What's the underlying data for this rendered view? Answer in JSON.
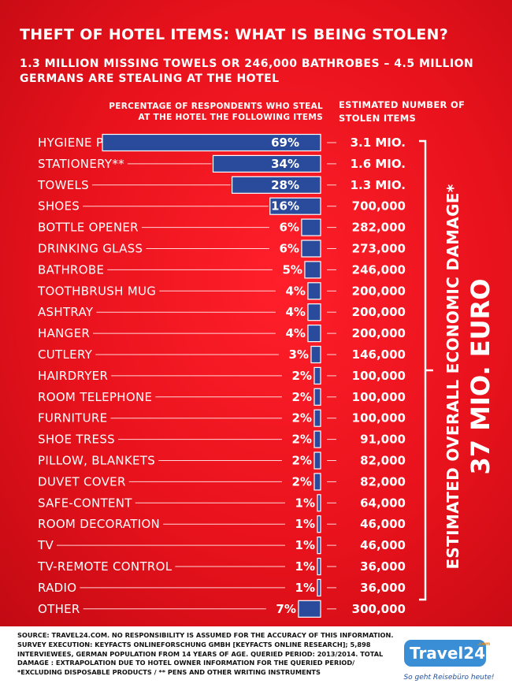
{
  "title": "THEFT OF HOTEL ITEMS: WHAT IS BEING STOLEN?",
  "subtitle": "1.3 MILLION MISSING TOWELS OR 246,000 BATHROBES – 4.5 MILLION GERMANS ARE STEALING AT THE HOTEL",
  "headers": {
    "percent": "PERCENTAGE OF RESPONDENTS WHO STEAL AT THE HOTEL THE FOLLOWING ITEMS",
    "stolen": "ESTIMATED NUMBER OF STOLEN ITEMS"
  },
  "damage": {
    "label": "ESTIMATED OVERALL ECONOMIC DAMAGE*",
    "value": "37 MIO. EURO"
  },
  "chart_data": {
    "type": "bar",
    "orientation": "horizontal",
    "categories": [
      "HYGIENE PRODUCTS",
      "STATIONERY**",
      "TOWELS",
      "SHOES",
      "BOTTLE OPENER",
      "DRINKING GLASS",
      "BATHROBE",
      "TOOTHBRUSH MUG",
      "ASHTRAY",
      "HANGER",
      "CUTLERY",
      "HAIRDRYER",
      "ROOM TELEPHONE",
      "FURNITURE",
      "SHOE TRESS",
      "PILLOW, BLANKETS",
      "DUVET COVER",
      "SAFE-CONTENT",
      "ROOM DECORATION",
      "TV",
      "TV-REMOTE CONTROL",
      "RADIO",
      "OTHER"
    ],
    "values": [
      69,
      34,
      28,
      16,
      6,
      6,
      5,
      4,
      4,
      4,
      3,
      2,
      2,
      2,
      2,
      2,
      2,
      1,
      1,
      1,
      1,
      1,
      7
    ],
    "value_labels": [
      "69%",
      "34%",
      "28%",
      "16%",
      "6%",
      "6%",
      "5%",
      "4%",
      "4%",
      "4%",
      "3%",
      "2%",
      "2%",
      "2%",
      "2%",
      "2%",
      "2%",
      "1%",
      "1%",
      "1%",
      "1%",
      "1%",
      "7%"
    ],
    "stolen_items": [
      "3.1 MIO.",
      "1.6 MIO.",
      "1.3 MIO.",
      "700,000",
      "282,000",
      "273,000",
      "246,000",
      "200,000",
      "200,000",
      "200,000",
      "146,000",
      "100,000",
      "100,000",
      "100,000",
      "91,000",
      "82,000",
      "82,000",
      "64,000",
      "46,000",
      "46,000",
      "36,000",
      "36,000",
      "300,000"
    ],
    "bar_color": "#2a4b9b",
    "background_color": "#e8121c"
  },
  "footer": {
    "source": "SOURCE: TRAVEL24.COM. NO RESPONSIBILITY IS ASSUMED FOR THE ACCURACY OF THIS INFORMATION. SURVEY EXECUTION: KEYFACTS ONLINEFORSCHUNG GMBH [KEYFACTS ONLINE RESEARCH]; 5,898 INTERVIEWEES, GERMAN POPULATION FROM 14 YEARS OF AGE. QUERIED PERIOD: 2013/2014. TOTAL DAMAGE : EXTRAPOLATION DUE TO HOTEL OWNER INFORMATION FOR THE QUERIED PERIOD/ *EXCLUDING DISPOSABLE PRODUCTS / ** PENS AND OTHER WRITING INSTRUMENTS",
    "logo": "Travel24",
    "logo_sup": ".com",
    "slogan": "So geht Reisebüro heute!"
  }
}
